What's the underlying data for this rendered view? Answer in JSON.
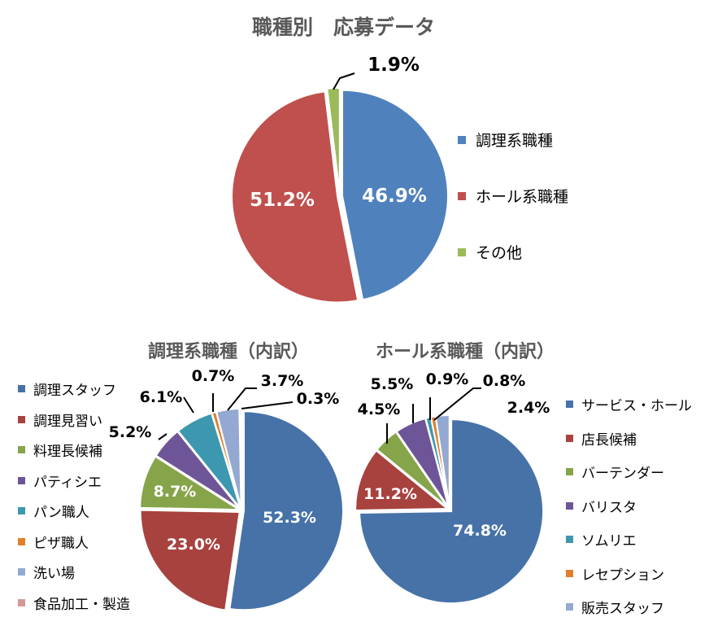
{
  "chart_data": [
    {
      "type": "pie",
      "title": "職種別　応募データ",
      "categories": [
        "調理系職種",
        "ホール系職種",
        "その他"
      ],
      "values": [
        46.9,
        51.2,
        1.9
      ],
      "labels": [
        "46.9%",
        "51.2%",
        "1.9%"
      ],
      "colors": [
        "#4F81BD",
        "#C0504D",
        "#9BBB59"
      ],
      "legend": "right"
    },
    {
      "type": "pie",
      "title": "調理系職種（内訳）",
      "categories": [
        "調理スタッフ",
        "調理見習い",
        "料理長候補",
        "パティシエ",
        "パン職人",
        "ピザ職人",
        "洗い場",
        "食品加工・製造"
      ],
      "values": [
        52.3,
        23.0,
        8.7,
        5.2,
        6.1,
        0.7,
        3.7,
        0.3
      ],
      "labels": [
        "52.3%",
        "23.0%",
        "8.7%",
        "5.2%",
        "6.1%",
        "0.7%",
        "3.7%",
        "0.3%"
      ],
      "colors": [
        "#4672A8",
        "#A8423F",
        "#86A44A",
        "#6E5597",
        "#3D97AF",
        "#E0802B",
        "#93A9D1",
        "#D19897"
      ],
      "legend": "left"
    },
    {
      "type": "pie",
      "title": "ホール系職種（内訳）",
      "categories": [
        "サービス・ホール",
        "店長候補",
        "バーテンダー",
        "バリスタ",
        "ソムリエ",
        "レセプション",
        "販売スタッフ"
      ],
      "values": [
        74.8,
        11.2,
        4.5,
        5.5,
        0.9,
        0.8,
        2.4
      ],
      "labels": [
        "74.8%",
        "11.2%",
        "4.5%",
        "5.5%",
        "0.9%",
        "0.8%",
        "2.4%"
      ],
      "colors": [
        "#4672A8",
        "#A8423F",
        "#86A44A",
        "#6E5597",
        "#3D97AF",
        "#E0802B",
        "#93A9D1"
      ],
      "legend": "right"
    }
  ]
}
